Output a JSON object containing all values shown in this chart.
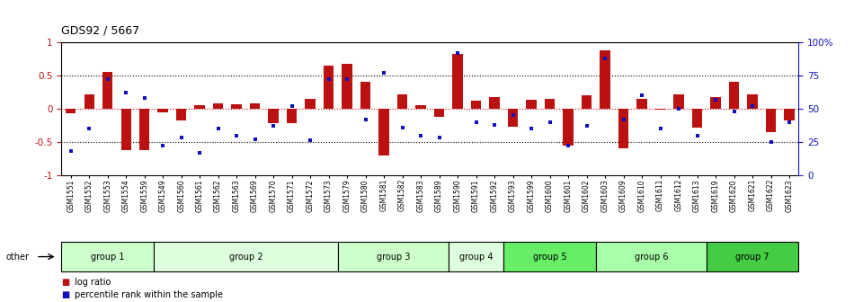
{
  "title": "GDS92 / 5667",
  "samples": [
    "GSM1551",
    "GSM1552",
    "GSM1553",
    "GSM1554",
    "GSM1559",
    "GSM1549",
    "GSM1560",
    "GSM1561",
    "GSM1562",
    "GSM1563",
    "GSM1569",
    "GSM1570",
    "GSM1571",
    "GSM1572",
    "GSM1573",
    "GSM1579",
    "GSM1580",
    "GSM1581",
    "GSM1582",
    "GSM1583",
    "GSM1589",
    "GSM1590",
    "GSM1591",
    "GSM1592",
    "GSM1593",
    "GSM1599",
    "GSM1600",
    "GSM1601",
    "GSM1602",
    "GSM1603",
    "GSM1609",
    "GSM1610",
    "GSM1611",
    "GSM1612",
    "GSM1613",
    "GSM1619",
    "GSM1620",
    "GSM1621",
    "GSM1622",
    "GSM1623"
  ],
  "log_ratio": [
    -0.07,
    0.22,
    0.55,
    -0.62,
    -0.62,
    -0.05,
    -0.18,
    0.05,
    0.08,
    0.07,
    0.08,
    -0.22,
    -0.22,
    0.15,
    0.65,
    0.67,
    0.4,
    -0.7,
    0.22,
    0.05,
    -0.12,
    0.82,
    0.12,
    0.17,
    -0.27,
    0.14,
    0.15,
    -0.55,
    0.2,
    0.88,
    -0.6,
    0.15,
    -0.02,
    0.22,
    -0.28,
    0.18,
    0.4,
    0.22,
    -0.35,
    -0.18
  ],
  "percentile_raw": [
    0.18,
    0.35,
    0.72,
    0.62,
    0.58,
    0.22,
    0.28,
    0.17,
    0.35,
    0.3,
    0.27,
    0.37,
    0.52,
    0.26,
    0.72,
    0.72,
    0.42,
    0.77,
    0.36,
    0.3,
    0.28,
    0.92,
    0.4,
    0.38,
    0.45,
    0.35,
    0.4,
    0.22,
    0.37,
    0.88,
    0.42,
    0.6,
    0.35,
    0.5,
    0.3,
    0.57,
    0.48,
    0.52,
    0.25,
    0.4
  ],
  "groups": [
    {
      "name": "group 1",
      "start": 0,
      "end": 4,
      "color": "#ccffcc"
    },
    {
      "name": "group 2",
      "start": 5,
      "end": 14,
      "color": "#ddffdd"
    },
    {
      "name": "group 3",
      "start": 15,
      "end": 20,
      "color": "#ccffcc"
    },
    {
      "name": "group 4",
      "start": 21,
      "end": 23,
      "color": "#ddffdd"
    },
    {
      "name": "group 5",
      "start": 24,
      "end": 28,
      "color": "#66ee66"
    },
    {
      "name": "group 6",
      "start": 29,
      "end": 34,
      "color": "#aaffaa"
    },
    {
      "name": "group 7",
      "start": 35,
      "end": 39,
      "color": "#44cc44"
    }
  ],
  "bar_color": "#bb1111",
  "dot_color": "#1111bb",
  "ylim_left": [
    -1.0,
    1.0
  ],
  "y_left_ticks": [
    -1,
    -0.5,
    0,
    0.5,
    1
  ],
  "y_left_labels": [
    "-1",
    "-0.5",
    "0",
    "0.5",
    "1"
  ],
  "y_right_labels": [
    "0",
    "25",
    "50",
    "75",
    "100%"
  ],
  "background_color": "#ffffff",
  "bar_width": 0.55
}
